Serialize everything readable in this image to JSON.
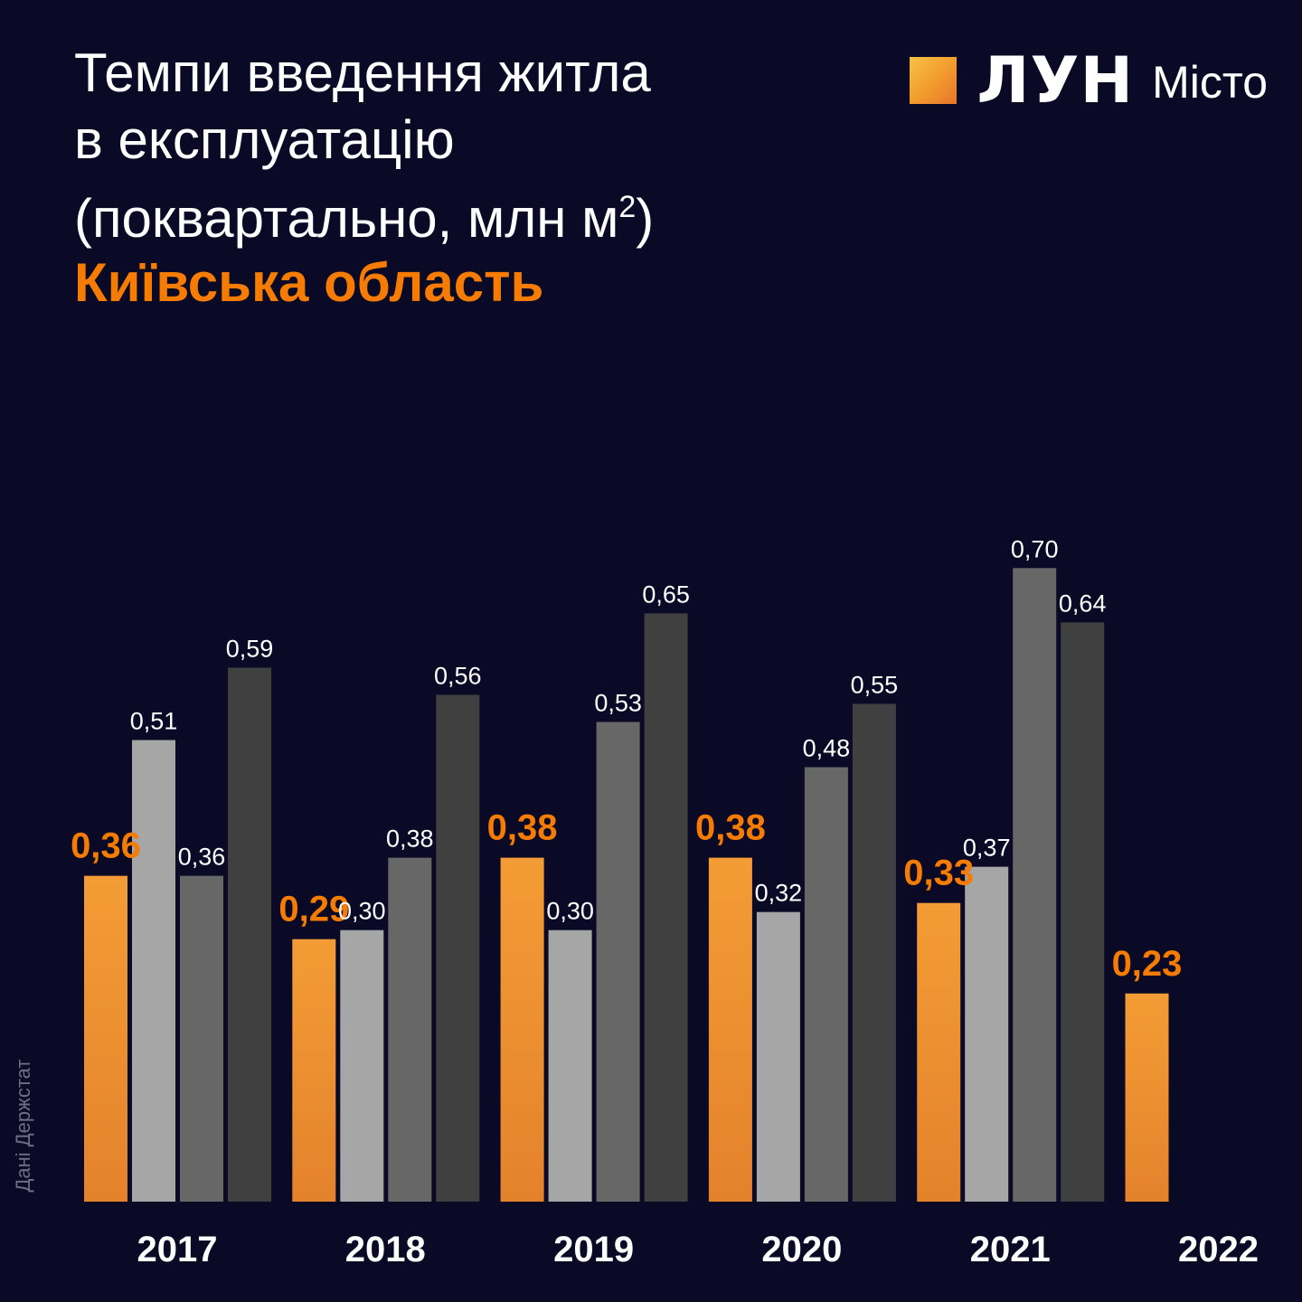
{
  "header": {
    "title_lines": [
      "Темпи введення житла",
      "в експлуатацію",
      "(поквартально, млн м"
    ],
    "title_sup": "2",
    "title_close": ")",
    "region": "Київська область"
  },
  "logo": {
    "brand": "ЛУН",
    "sub": "Місто"
  },
  "source": "Дані Держстат",
  "colors": {
    "background": "#0b0a26",
    "q1_top": "#f39c35",
    "q1_bottom": "#e4822c",
    "q2": "#a6a6a6",
    "q3": "#676767",
    "q4": "#404040",
    "accent_text": "#f57c00",
    "label_text": "#ffffff"
  },
  "chart_data": {
    "type": "bar",
    "categories": [
      "2017",
      "2018",
      "2019",
      "2020",
      "2021",
      "2022"
    ],
    "series": [
      {
        "values": [
          0.36,
          0.29,
          0.38,
          0.38,
          0.33,
          0.23
        ],
        "labels": [
          "0,36",
          "0,29",
          "0,38",
          "0,38",
          "0,33",
          "0,23"
        ]
      },
      {
        "values": [
          0.51,
          0.3,
          0.3,
          0.32,
          0.37,
          null
        ],
        "labels": [
          "0,51",
          "0,30",
          "0,30",
          "0,32",
          "0,37",
          ""
        ]
      },
      {
        "values": [
          0.36,
          0.38,
          0.53,
          0.48,
          0.7,
          null
        ],
        "labels": [
          "0,36",
          "0,38",
          "0,53",
          "0,48",
          "0,70",
          ""
        ]
      },
      {
        "values": [
          0.59,
          0.56,
          0.65,
          0.55,
          0.64,
          null
        ],
        "labels": [
          "0,59",
          "0,56",
          "0,65",
          "0,55",
          "0,64",
          ""
        ]
      }
    ],
    "ylim": [
      0,
      0.72
    ],
    "grid": false,
    "legend": "none"
  }
}
